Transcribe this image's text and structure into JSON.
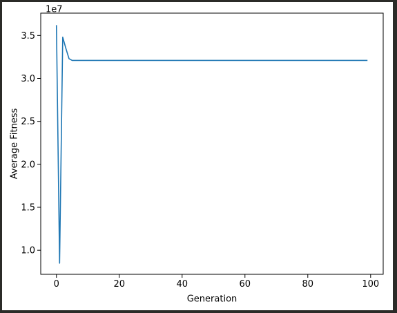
{
  "chart_data": {
    "type": "line",
    "title": "",
    "xlabel": "Generation",
    "ylabel": "Average Fitness",
    "y_offset_label": "1e7",
    "xlim": [
      -5,
      104
    ],
    "ylim": [
      0.72,
      3.76
    ],
    "x_ticks": [
      0,
      20,
      40,
      60,
      80,
      100
    ],
    "x_tick_labels": [
      "0",
      "20",
      "40",
      "60",
      "80",
      "100"
    ],
    "y_ticks": [
      1.0,
      1.5,
      2.0,
      2.5,
      3.0,
      3.5
    ],
    "y_tick_labels": [
      "1.0",
      "1.5",
      "2.0",
      "2.5",
      "3.0",
      "3.5"
    ],
    "grid": false,
    "legend": "none",
    "series": [
      {
        "color": "#1f77b4",
        "x": [
          0,
          1,
          2,
          3,
          4,
          5,
          6,
          99
        ],
        "y": [
          3.62,
          0.85,
          3.48,
          3.35,
          3.23,
          3.21,
          3.21,
          3.21
        ]
      }
    ]
  }
}
